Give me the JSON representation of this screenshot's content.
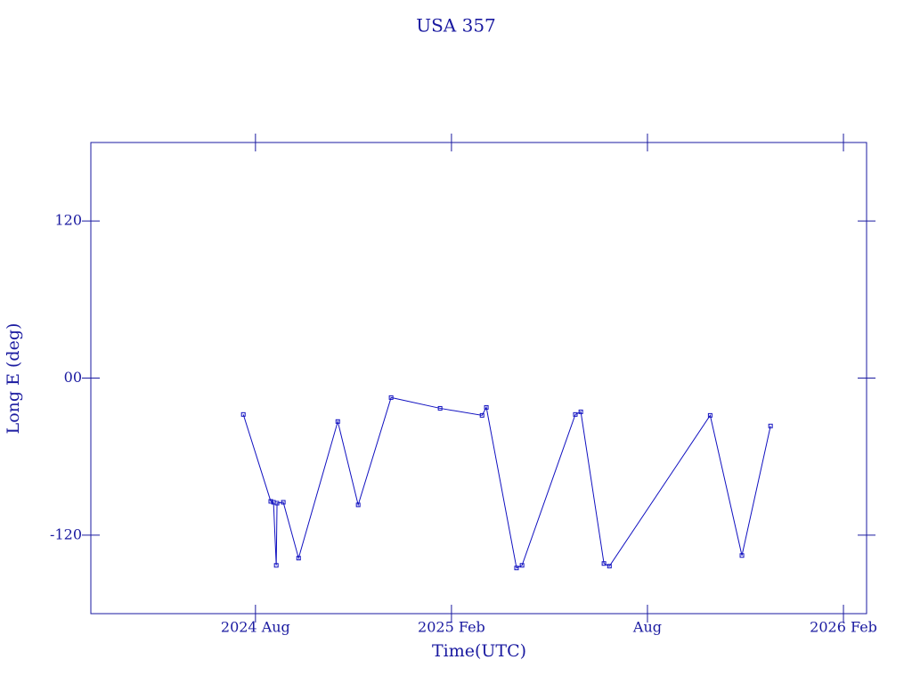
{
  "chart_data": {
    "type": "line",
    "title": "USA 357",
    "x_label": "Time(UTC)",
    "y_label": "Long E (deg)",
    "color": "#1010c0",
    "xlim": [
      2024.163,
      2026.142
    ],
    "xticks": [
      {
        "value": 2024.583,
        "label": "2024 Aug"
      },
      {
        "value": 2025.083,
        "label": "2025 Feb"
      },
      {
        "value": 2025.583,
        "label": "Aug"
      },
      {
        "value": 2026.083,
        "label": "2026 Feb"
      }
    ],
    "ylim": [
      -180,
      180
    ],
    "yticks": [
      -120,
      {
        "value": 0,
        "label": "00"
      },
      120
    ],
    "series": [
      {
        "name": "USA 357",
        "color": "#1010c0",
        "x": [
          2024.552,
          2024.622,
          2024.629,
          2024.636,
          2024.638,
          2024.654,
          2024.693,
          2024.793,
          2024.845,
          2024.929,
          2025.054,
          2025.161,
          2025.172,
          2025.249,
          2025.263,
          2025.399,
          2025.413,
          2025.472,
          2025.486,
          2025.743,
          2025.824,
          2025.897
        ],
        "values": [
          -27.8,
          -94.2,
          -94.9,
          -143.1,
          -95.6,
          -94.9,
          -137.6,
          -33.2,
          -96.9,
          -14.9,
          -23.1,
          -28.5,
          -22.4,
          -145.1,
          -143.1,
          -27.8,
          -25.8,
          -141.7,
          -143.7,
          -28.5,
          -135.6,
          -36.6
        ]
      }
    ]
  }
}
